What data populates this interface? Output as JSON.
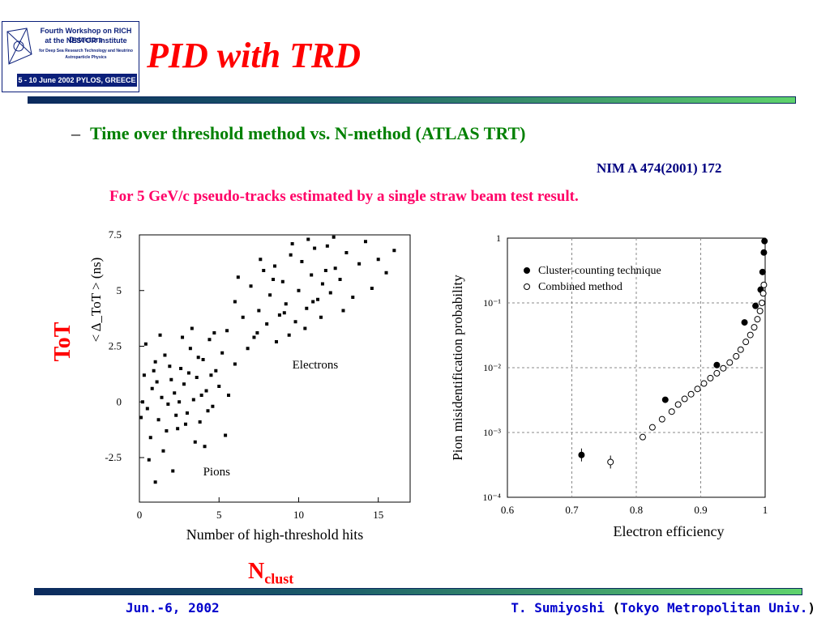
{
  "logo": {
    "line1": "Fourth Workshop on RICH Detectors",
    "line2": "at the NESTOR Institute",
    "line3": "for Deep Sea Research Technology and Neutrino Astroparticle Physics",
    "date": "5 - 10 June 2002  PYLOS, GREECE"
  },
  "title": "PID with TRD",
  "bullet": {
    "dash": "–",
    "text": "Time over threshold method vs. N-method (ATLAS TRT)"
  },
  "reference": "NIM A 474(2001) 172",
  "note": "For 5 GeV/c pseudo-tracks estimated by a single straw beam test result.",
  "tot_label": "ToT",
  "nclust": {
    "main": "N",
    "sub": "clust"
  },
  "footer": {
    "date": "Jun.-6, 2002",
    "author": "T. Sumiyoshi",
    "paren_open": " (",
    "affiliation": "Tokyo Metropolitan Univ.",
    "paren_close": ")"
  },
  "chart_data": [
    {
      "type": "scatter",
      "xlabel": "Number of high-threshold hits",
      "ylabel": "< Δ_ToT > (ns)",
      "xlim": [
        0,
        17
      ],
      "ylim": [
        -4.5,
        7.5
      ],
      "xticks": [
        "0",
        "5",
        "10",
        "15"
      ],
      "yticks": [
        "-2.5",
        "0",
        "2.5",
        "5",
        "7.5"
      ],
      "annotations": [
        "Electrons",
        "Pions"
      ],
      "series": [
        {
          "name": "Pions",
          "points": [
            [
              0.3,
              1.2
            ],
            [
              0.5,
              -0.3
            ],
            [
              0.8,
              0.6
            ],
            [
              1.0,
              1.8
            ],
            [
              1.2,
              -0.8
            ],
            [
              1.4,
              0.2
            ],
            [
              1.6,
              2.1
            ],
            [
              1.8,
              -0.1
            ],
            [
              2.0,
              1.0
            ],
            [
              2.2,
              0.4
            ],
            [
              2.4,
              -1.2
            ],
            [
              2.6,
              1.5
            ],
            [
              2.8,
              0.8
            ],
            [
              3.0,
              -0.5
            ],
            [
              3.2,
              2.4
            ],
            [
              3.4,
              0.1
            ],
            [
              3.6,
              1.1
            ],
            [
              3.8,
              -0.9
            ],
            [
              4.0,
              1.9
            ],
            [
              4.2,
              0.5
            ],
            [
              4.4,
              2.8
            ],
            [
              4.6,
              -0.2
            ],
            [
              4.8,
              1.4
            ],
            [
              5.0,
              0.7
            ],
            [
              5.2,
              2.2
            ],
            [
              5.4,
              -1.5
            ],
            [
              0.4,
              2.6
            ],
            [
              0.7,
              -1.6
            ],
            [
              1.1,
              0.9
            ],
            [
              1.5,
              -2.2
            ],
            [
              1.9,
              1.6
            ],
            [
              2.3,
              -0.6
            ],
            [
              2.7,
              2.9
            ],
            [
              3.1,
              1.3
            ],
            [
              3.5,
              -1.8
            ],
            [
              3.9,
              0.3
            ],
            [
              4.3,
              -0.4
            ],
            [
              4.7,
              3.1
            ],
            [
              0.2,
              0.0
            ],
            [
              0.6,
              -2.6
            ],
            [
              1.3,
              3.0
            ],
            [
              2.1,
              -3.1
            ],
            [
              2.9,
              -1.0
            ],
            [
              3.3,
              3.3
            ],
            [
              4.1,
              -2.0
            ],
            [
              0.9,
              1.4
            ],
            [
              1.7,
              -1.3
            ],
            [
              2.5,
              0.0
            ],
            [
              3.7,
              2.0
            ],
            [
              4.5,
              1.2
            ],
            [
              5.6,
              0.3
            ],
            [
              6.0,
              1.7
            ],
            [
              0.1,
              -0.7
            ],
            [
              1.0,
              -3.6
            ]
          ]
        },
        {
          "name": "Electrons",
          "points": [
            [
              5.5,
              3.2
            ],
            [
              6.0,
              4.5
            ],
            [
              6.5,
              3.8
            ],
            [
              7.0,
              5.2
            ],
            [
              7.2,
              2.9
            ],
            [
              7.5,
              4.1
            ],
            [
              7.8,
              5.9
            ],
            [
              8.0,
              3.5
            ],
            [
              8.2,
              4.8
            ],
            [
              8.5,
              6.1
            ],
            [
              8.8,
              3.9
            ],
            [
              9.0,
              5.4
            ],
            [
              9.2,
              4.4
            ],
            [
              9.5,
              6.6
            ],
            [
              9.8,
              3.6
            ],
            [
              10.0,
              5.0
            ],
            [
              10.2,
              6.3
            ],
            [
              10.5,
              4.2
            ],
            [
              10.8,
              5.7
            ],
            [
              11.0,
              6.9
            ],
            [
              11.2,
              4.6
            ],
            [
              11.5,
              5.3
            ],
            [
              11.8,
              7.0
            ],
            [
              12.0,
              4.9
            ],
            [
              12.3,
              6.0
            ],
            [
              12.6,
              5.5
            ],
            [
              13.0,
              6.7
            ],
            [
              13.4,
              4.7
            ],
            [
              13.8,
              6.2
            ],
            [
              14.2,
              7.2
            ],
            [
              14.6,
              5.1
            ],
            [
              15.0,
              6.4
            ],
            [
              15.5,
              5.8
            ],
            [
              16.0,
              6.8
            ],
            [
              6.8,
              2.4
            ],
            [
              7.4,
              3.1
            ],
            [
              8.6,
              2.7
            ],
            [
              9.4,
              3.0
            ],
            [
              10.4,
              3.3
            ],
            [
              11.4,
              3.8
            ],
            [
              12.8,
              4.1
            ],
            [
              6.2,
              5.6
            ],
            [
              7.6,
              6.4
            ],
            [
              9.6,
              7.1
            ],
            [
              10.6,
              7.3
            ],
            [
              12.2,
              7.4
            ],
            [
              8.4,
              5.5
            ],
            [
              9.1,
              4.0
            ],
            [
              10.9,
              4.5
            ],
            [
              11.7,
              5.9
            ]
          ]
        }
      ]
    },
    {
      "type": "scatter",
      "xlabel": "Electron efficiency",
      "ylabel": "Pion misidentification probability",
      "xlim": [
        0.6,
        1.0
      ],
      "ylim": [
        0.0001,
        1
      ],
      "yscale": "log",
      "xticks": [
        "0.6",
        "0.7",
        "0.8",
        "0.9",
        "1"
      ],
      "yticks": [
        "1",
        "10⁻¹",
        "10⁻²",
        "10⁻³",
        "10⁻⁴"
      ],
      "grid": true,
      "legend_position": "top-left",
      "series": [
        {
          "name": "Cluster-counting technique",
          "marker": "filled-circle",
          "points": [
            [
              0.715,
              0.00045
            ],
            [
              0.845,
              0.0032
            ],
            [
              0.925,
              0.011
            ],
            [
              0.968,
              0.05
            ],
            [
              0.985,
              0.09
            ],
            [
              0.993,
              0.16
            ],
            [
              0.996,
              0.3
            ],
            [
              0.998,
              0.6
            ],
            [
              0.999,
              0.9
            ]
          ]
        },
        {
          "name": "Combined method",
          "marker": "open-circle",
          "points": [
            [
              0.76,
              0.00035
            ],
            [
              0.81,
              0.00085
            ],
            [
              0.825,
              0.0012
            ],
            [
              0.84,
              0.0016
            ],
            [
              0.855,
              0.0021
            ],
            [
              0.865,
              0.0027
            ],
            [
              0.875,
              0.0033
            ],
            [
              0.885,
              0.0039
            ],
            [
              0.895,
              0.0047
            ],
            [
              0.905,
              0.0057
            ],
            [
              0.915,
              0.0069
            ],
            [
              0.925,
              0.0082
            ],
            [
              0.935,
              0.0098
            ],
            [
              0.945,
              0.012
            ],
            [
              0.955,
              0.015
            ],
            [
              0.962,
              0.019
            ],
            [
              0.97,
              0.025
            ],
            [
              0.977,
              0.032
            ],
            [
              0.983,
              0.042
            ],
            [
              0.988,
              0.056
            ],
            [
              0.992,
              0.075
            ],
            [
              0.995,
              0.1
            ],
            [
              0.997,
              0.14
            ],
            [
              0.998,
              0.19
            ]
          ]
        }
      ]
    }
  ]
}
